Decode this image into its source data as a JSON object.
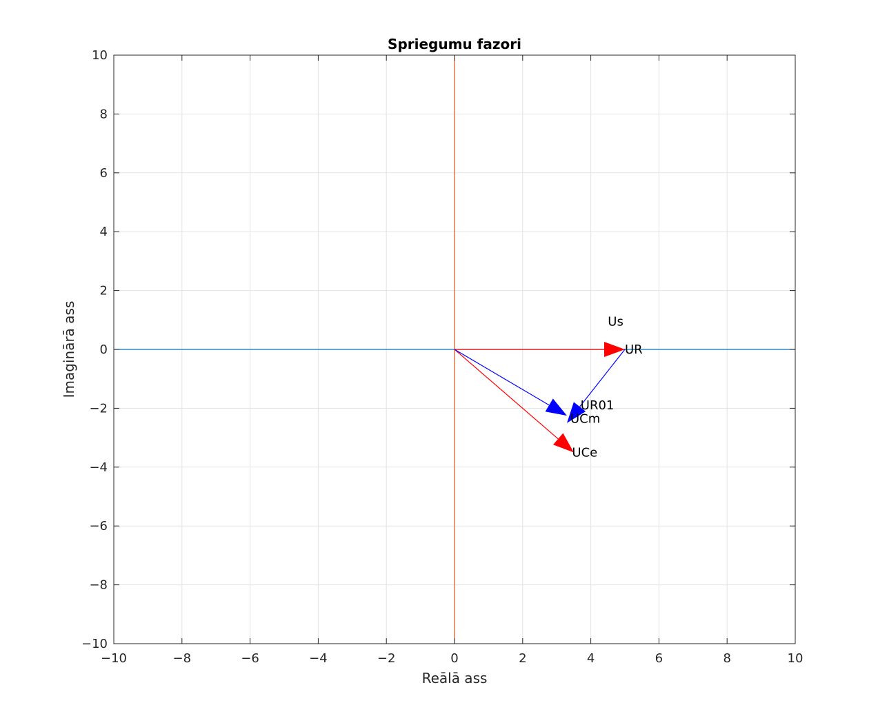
{
  "chart_data": {
    "type": "vector",
    "title": "Spriegumu fazori",
    "xlabel": "Reālā ass",
    "ylabel": "Imaginārā ass",
    "xlim": [
      -10,
      10
    ],
    "ylim": [
      -10,
      10
    ],
    "xticks": [
      -10,
      -8,
      -6,
      -4,
      -2,
      0,
      2,
      4,
      6,
      8,
      10
    ],
    "yticks": [
      -10,
      -8,
      -6,
      -4,
      -2,
      0,
      2,
      4,
      6,
      8,
      10
    ],
    "xtick_labels": [
      "−10",
      "−8",
      "−6",
      "−4",
      "−2",
      "0",
      "2",
      "4",
      "6",
      "8",
      "10"
    ],
    "ytick_labels": [
      "−10",
      "−8",
      "−6",
      "−4",
      "−2",
      "0",
      "2",
      "4",
      "6",
      "8",
      "10"
    ],
    "grid": true,
    "reference_lines": [
      {
        "orientation": "horizontal",
        "value": 0,
        "color": "#0072bd"
      },
      {
        "orientation": "vertical",
        "value": 0,
        "color": "#d95319"
      }
    ],
    "vectors": [
      {
        "from": [
          0,
          0
        ],
        "to": [
          5.0,
          0.0
        ],
        "color": "#ff0000"
      },
      {
        "from": [
          0,
          0
        ],
        "to": [
          3.5,
          -3.5
        ],
        "color": "#ff0000"
      },
      {
        "from": [
          0,
          0
        ],
        "to": [
          3.3,
          -2.25
        ],
        "color": "#0000ff"
      },
      {
        "from": [
          5.0,
          0.0
        ],
        "to": [
          3.3,
          -2.5
        ],
        "color": "#0000ff"
      }
    ],
    "annotations": [
      {
        "text": "Us",
        "x": 4.5,
        "y": 0.95
      },
      {
        "text": "UR",
        "x": 5.0,
        "y": 0.0
      },
      {
        "text": "UR01",
        "x": 3.7,
        "y": -1.9
      },
      {
        "text": "UCm",
        "x": 3.4,
        "y": -2.35
      },
      {
        "text": "UCe",
        "x": 3.45,
        "y": -3.5
      }
    ]
  }
}
